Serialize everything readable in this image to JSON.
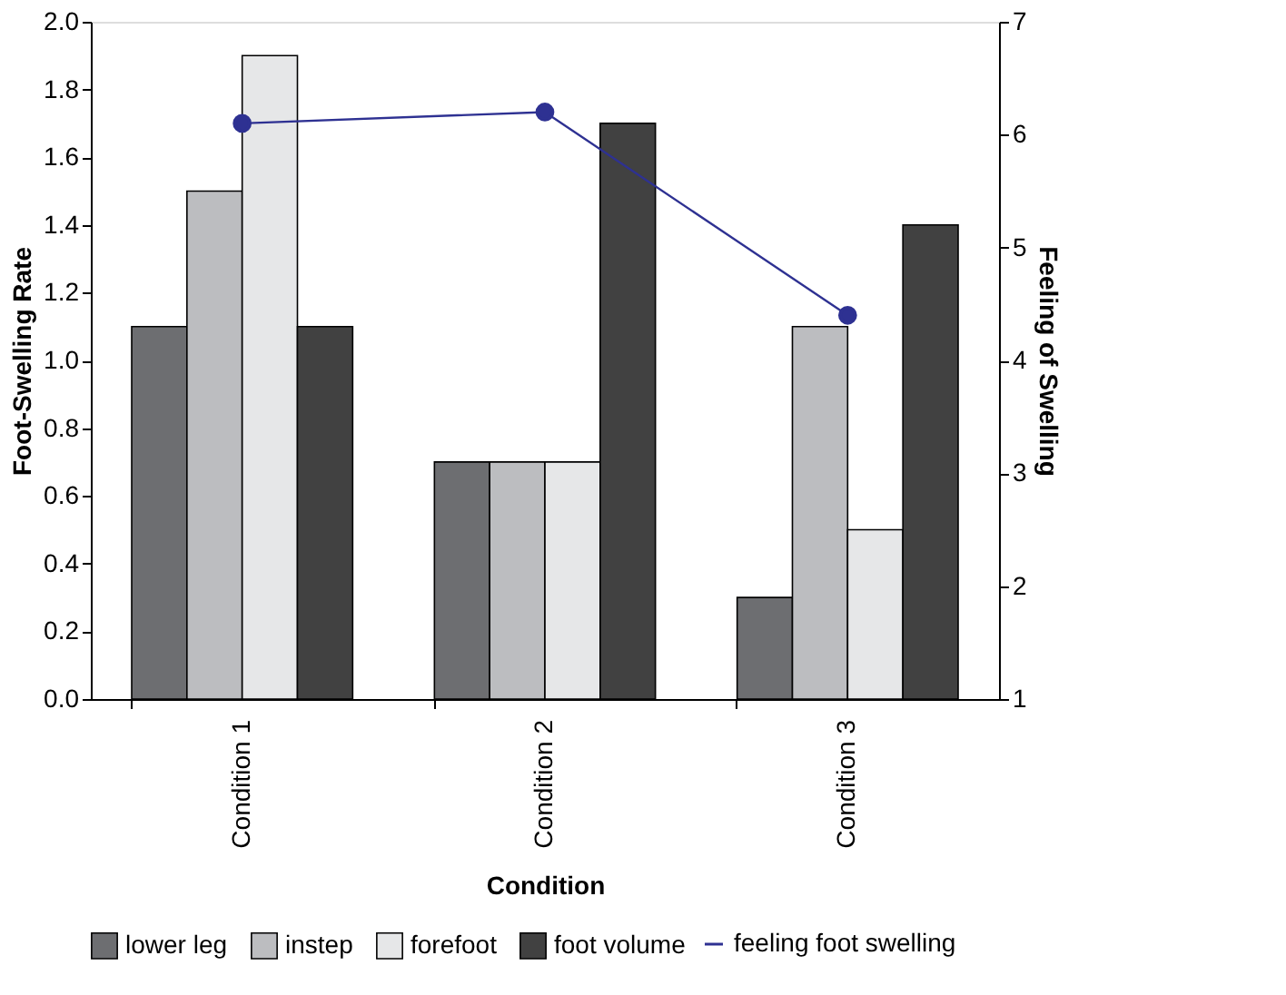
{
  "chart_data": {
    "type": "bar",
    "xlabel": "Condition",
    "ylabel": "Foot-Swelling Rate",
    "y2label": "Feeling of Swelling",
    "categories": [
      "Condition 1",
      "Condition 2",
      "Condition 3"
    ],
    "series": [
      {
        "name": "lower leg",
        "color": "#6d6e71",
        "values": [
          1.1,
          0.7,
          0.3
        ]
      },
      {
        "name": "instep",
        "color": "#bcbdc0",
        "values": [
          1.5,
          0.7,
          1.1
        ]
      },
      {
        "name": "forefoot",
        "color": "#e6e7e8",
        "values": [
          1.9,
          0.7,
          0.5
        ]
      },
      {
        "name": "foot volume",
        "color": "#414141",
        "values": [
          1.1,
          1.7,
          1.4
        ]
      },
      {
        "name": "feeling foot swelling",
        "color": "#2e3192",
        "type": "line",
        "axis": "y2",
        "marker": "circle",
        "values": [
          6.1,
          6.2,
          4.4
        ]
      }
    ],
    "ylim": [
      0,
      2
    ],
    "yticks": [
      {
        "value": 0,
        "label": "0.0"
      },
      {
        "value": 0.2,
        "label": "0.2"
      },
      {
        "value": 0.4,
        "label": "0.4"
      },
      {
        "value": 0.6,
        "label": "0.6"
      },
      {
        "value": 0.8,
        "label": "0.8"
      },
      {
        "value": 1,
        "label": "1.0"
      },
      {
        "value": 1.2,
        "label": "1.2"
      },
      {
        "value": 1.4,
        "label": "1.4"
      },
      {
        "value": 1.6,
        "label": "1.6"
      },
      {
        "value": 1.8,
        "label": "1.8"
      },
      {
        "value": 2,
        "label": "2.0"
      }
    ],
    "y2lim": [
      1,
      7
    ],
    "y2ticks": [
      1,
      2,
      3,
      4,
      5,
      6,
      7
    ],
    "grid": false,
    "legend": "bottom"
  }
}
